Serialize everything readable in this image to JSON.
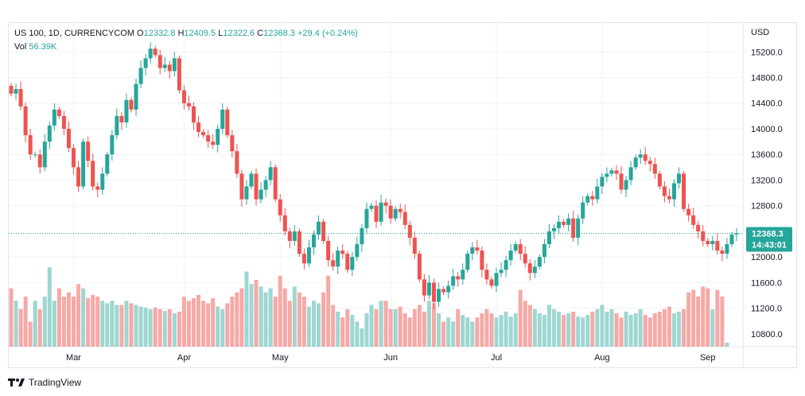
{
  "legend": {
    "symbol": "US 100, 1D, CURRENCYCOM",
    "o_label": "O",
    "o_value": "12332.8",
    "h_label": "H",
    "h_value": "12409.5",
    "l_label": "L",
    "l_value": "12322.6",
    "c_label": "C",
    "c_value": "12368.3",
    "change": "+29.4 (+0.24%)",
    "vol_label": "Vol",
    "vol_value": "56.39K"
  },
  "footer": {
    "brand": "TradingView"
  },
  "colors": {
    "up": "#26a69a",
    "down": "#ef5350",
    "vol_up": "#9fd6d1",
    "vol_down": "#f6a9a6",
    "grid": "#f0f3fa",
    "tag": "#26a69a"
  },
  "chart_data": {
    "type": "candlestick",
    "currency_label": "USD",
    "price_ticks": [
      "15200.0",
      "14800.0",
      "14400.0",
      "14000.0",
      "13600.0",
      "13200.0",
      "12800.0",
      "12000.0",
      "11600.0",
      "11200.0",
      "10800.0"
    ],
    "price_tick_values": [
      15200,
      14800,
      14400,
      14000,
      13600,
      13200,
      12800,
      12000,
      11600,
      11200,
      10800
    ],
    "ylim": [
      10600,
      15650
    ],
    "month_labels": [
      {
        "label": "Mar",
        "index": 13
      },
      {
        "label": "Apr",
        "index": 36
      },
      {
        "label": "May",
        "index": 56
      },
      {
        "label": "Jun",
        "index": 79
      },
      {
        "label": "Jul",
        "index": 101
      },
      {
        "label": "Aug",
        "index": 123
      },
      {
        "label": "Sep",
        "index": 145
      }
    ],
    "last_price": {
      "value": 12368.3,
      "label": "12368.3",
      "countdown": "14:43:01"
    },
    "close": [
      14550,
      14620,
      14350,
      13900,
      13600,
      13600,
      13400,
      13800,
      14050,
      14300,
      14200,
      14000,
      13700,
      13400,
      13100,
      13800,
      13500,
      13100,
      13050,
      13300,
      13600,
      13900,
      14200,
      14100,
      14450,
      14300,
      14700,
      14950,
      15100,
      15250,
      15150,
      14950,
      15000,
      14900,
      15100,
      14600,
      14400,
      14350,
      14100,
      13950,
      13900,
      13800,
      13750,
      14000,
      14300,
      13900,
      13650,
      13300,
      12900,
      13100,
      13300,
      12900,
      13050,
      13200,
      13400,
      12900,
      12650,
      12400,
      12250,
      12400,
      12050,
      11900,
      12150,
      12350,
      12550,
      12250,
      11950,
      11850,
      12100,
      12050,
      11800,
      12000,
      12200,
      12450,
      12750,
      12800,
      12550,
      12850,
      12800,
      12600,
      12750,
      12700,
      12500,
      12300,
      12050,
      11650,
      11400,
      11600,
      11300,
      11500,
      11450,
      11550,
      11700,
      11650,
      11800,
      12050,
      12150,
      12100,
      11800,
      11650,
      11550,
      11750,
      11800,
      11950,
      12100,
      12200,
      12050,
      11900,
      11750,
      11850,
      12000,
      12200,
      12400,
      12450,
      12550,
      12500,
      12600,
      12300,
      12600,
      12850,
      12950,
      12900,
      13100,
      13250,
      13300,
      13350,
      13300,
      13050,
      13200,
      13400,
      13550,
      13600,
      13500,
      13450,
      13300,
      13100,
      12950,
      12900,
      13150,
      13300,
      12750,
      12650,
      12500,
      12400,
      12250,
      12200,
      12250,
      12100,
      12050,
      12200,
      12350,
      12368.3
    ],
    "volume_ratio": [
      0.7,
      0.55,
      0.45,
      0.6,
      0.3,
      0.55,
      0.45,
      0.6,
      0.95,
      0.55,
      0.7,
      0.6,
      0.65,
      0.6,
      0.75,
      0.7,
      0.58,
      0.62,
      0.6,
      0.55,
      0.52,
      0.55,
      0.5,
      0.5,
      0.55,
      0.52,
      0.5,
      0.48,
      0.47,
      0.45,
      0.47,
      0.45,
      0.43,
      0.45,
      0.4,
      0.42,
      0.6,
      0.55,
      0.58,
      0.62,
      0.55,
      0.52,
      0.58,
      0.48,
      0.45,
      0.52,
      0.6,
      0.65,
      0.7,
      0.9,
      0.75,
      0.8,
      0.72,
      0.65,
      0.7,
      0.6,
      0.85,
      0.7,
      0.55,
      0.72,
      0.65,
      0.6,
      0.48,
      0.55,
      0.52,
      0.65,
      0.85,
      0.5,
      0.42,
      0.35,
      0.45,
      0.38,
      0.3,
      0.22,
      0.4,
      0.5,
      0.45,
      0.55,
      0.55,
      0.45,
      0.45,
      0.48,
      0.4,
      0.35,
      0.45,
      0.5,
      0.42,
      0.55,
      0.52,
      0.4,
      0.3,
      0.35,
      0.3,
      0.45,
      0.38,
      0.35,
      0.3,
      0.35,
      0.4,
      0.45,
      0.4,
      0.35,
      0.38,
      0.42,
      0.36,
      0.4,
      0.68,
      0.55,
      0.5,
      0.45,
      0.4,
      0.38,
      0.5,
      0.45,
      0.42,
      0.38,
      0.4,
      0.42,
      0.36,
      0.35,
      0.38,
      0.42,
      0.45,
      0.5,
      0.42,
      0.45,
      0.4,
      0.35,
      0.42,
      0.38,
      0.4,
      0.45,
      0.38,
      0.35,
      0.4,
      0.42,
      0.45,
      0.48,
      0.4,
      0.42,
      0.45,
      0.65,
      0.68,
      0.6,
      0.72,
      0.7,
      0.45,
      0.68,
      0.6,
      0.05
    ]
  }
}
